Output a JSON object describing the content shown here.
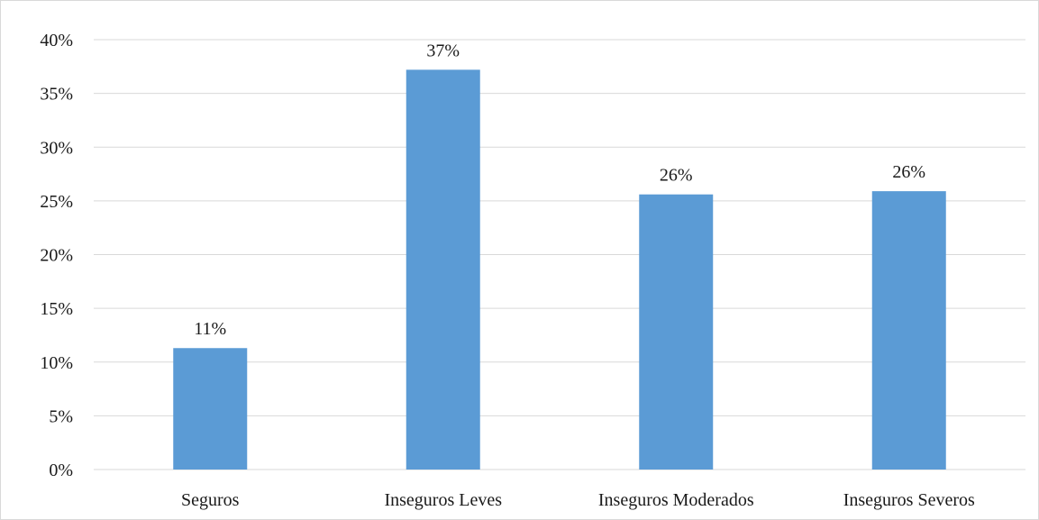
{
  "chart_data": {
    "type": "bar",
    "categories": [
      "Seguros",
      "Inseguros Leves",
      "Inseguros Moderados",
      "Inseguros Severos"
    ],
    "values": [
      11.3,
      37.2,
      25.6,
      25.9
    ],
    "data_labels": [
      "11%",
      "37%",
      "26%",
      "26%"
    ],
    "ylim": [
      0,
      40
    ],
    "yticks": [
      0,
      5,
      10,
      15,
      20,
      25,
      30,
      35,
      40
    ],
    "ytick_labels": [
      "0%",
      "5%",
      "10%",
      "15%",
      "20%",
      "25%",
      "30%",
      "35%",
      "40%"
    ],
    "grid": true,
    "legend": "none",
    "bar_color": "#5b9bd5"
  }
}
